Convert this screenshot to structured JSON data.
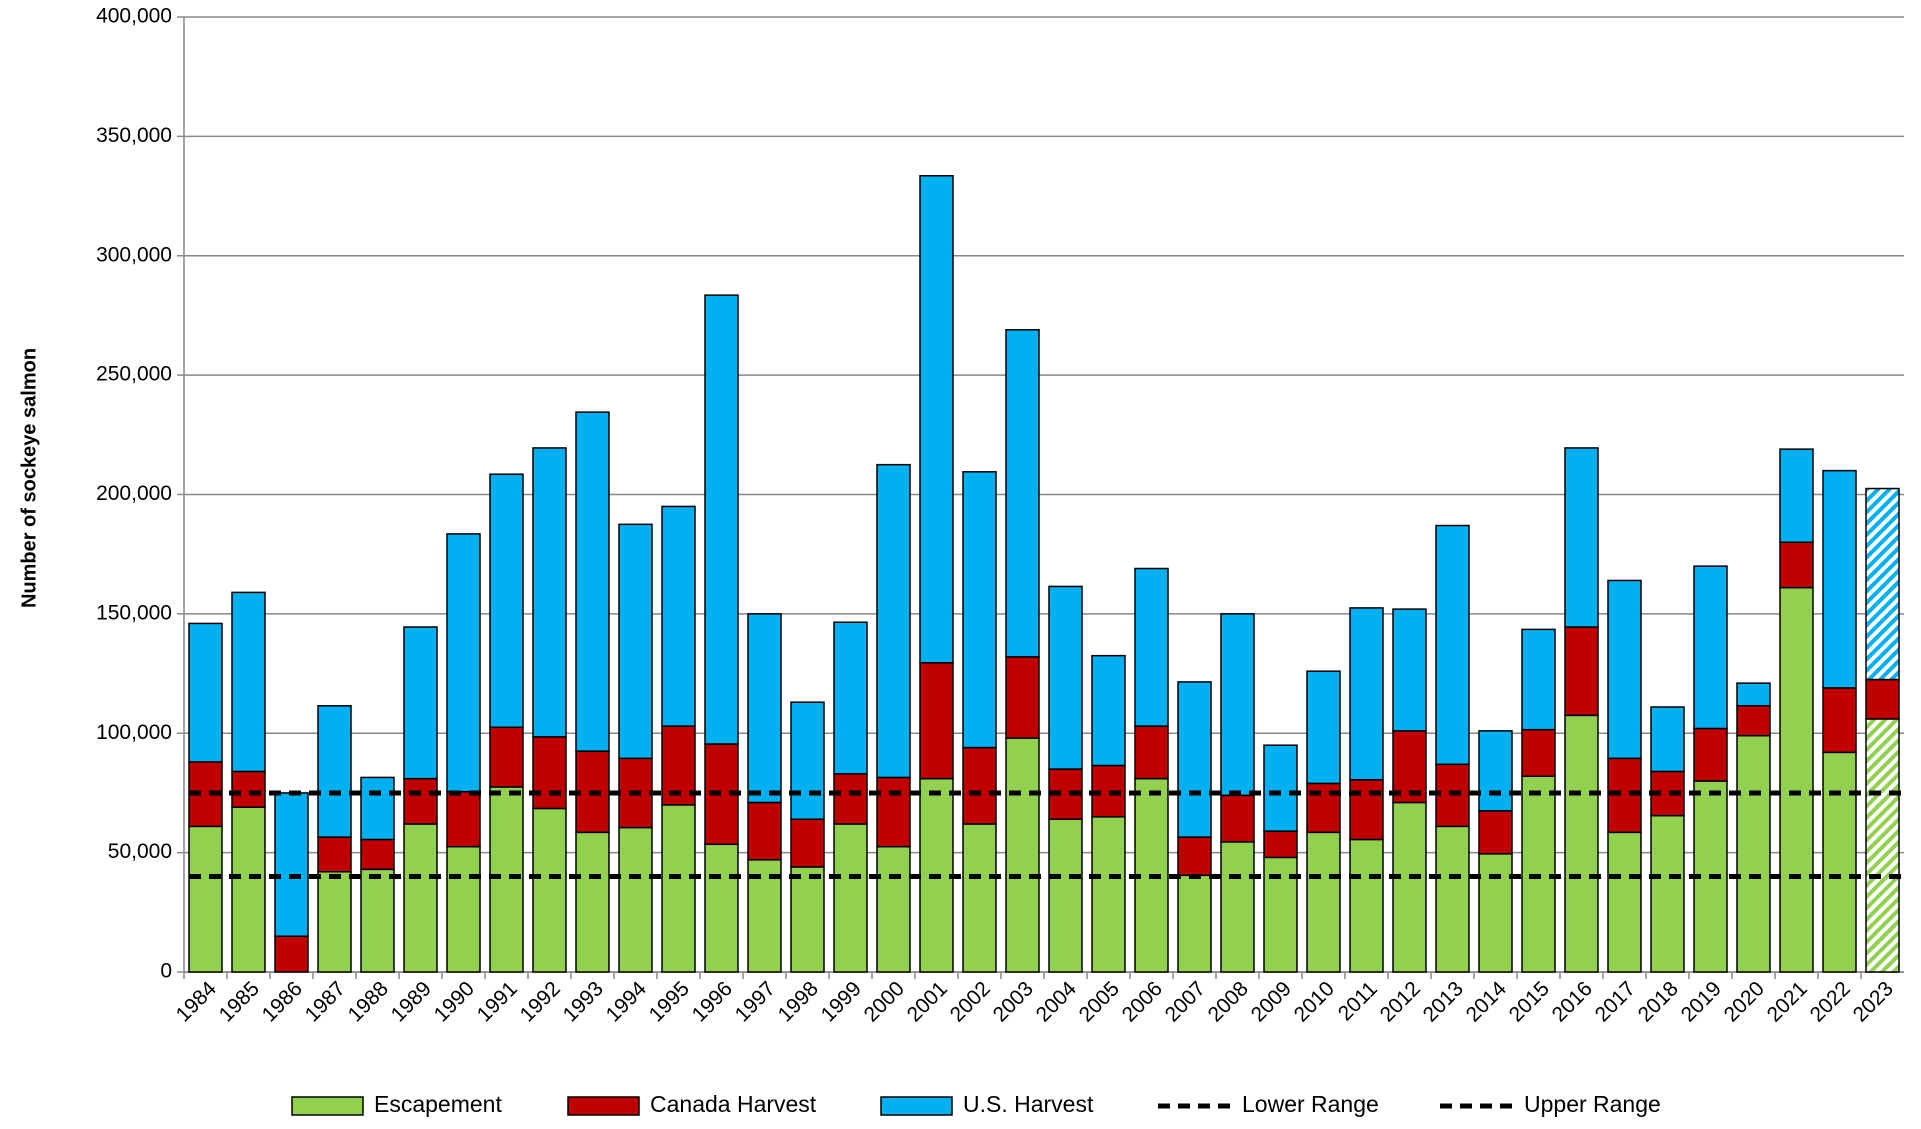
{
  "chart_data": {
    "type": "stacked_bar",
    "y_label": "Number of sockeye salmon",
    "categories": [
      "1984",
      "1985",
      "1986",
      "1987",
      "1988",
      "1989",
      "1990",
      "1991",
      "1992",
      "1993",
      "1994",
      "1995",
      "1996",
      "1997",
      "1998",
      "1999",
      "2000",
      "2001",
      "2002",
      "2003",
      "2004",
      "2005",
      "2006",
      "2007",
      "2008",
      "2009",
      "2010",
      "2011",
      "2012",
      "2013",
      "2014",
      "2015",
      "2016",
      "2017",
      "2018",
      "2019",
      "2020",
      "2021",
      "2022",
      "2023"
    ],
    "series": [
      {
        "name": "Escapement",
        "color": "#92d050",
        "hatch_last": true,
        "values": [
          61000,
          69000,
          0,
          42000,
          43000,
          62000,
          52500,
          77500,
          68500,
          58500,
          60500,
          70000,
          53500,
          47000,
          44000,
          62000,
          52500,
          81000,
          62000,
          98000,
          64000,
          65000,
          81000,
          40500,
          54500,
          48000,
          58500,
          55500,
          71000,
          61000,
          49500,
          82000,
          107500,
          58500,
          65500,
          80000,
          99000,
          161000,
          92000,
          106000
        ]
      },
      {
        "name": "Canada Harvest",
        "color": "#c00000",
        "hatch_last": false,
        "values": [
          27000,
          15000,
          15000,
          14500,
          12500,
          19000,
          23000,
          25000,
          30000,
          34000,
          29000,
          33000,
          42000,
          24000,
          20000,
          21000,
          29000,
          48500,
          32000,
          34000,
          21000,
          21500,
          22000,
          16000,
          19500,
          11000,
          20500,
          25000,
          30000,
          26000,
          18000,
          19500,
          37000,
          31000,
          18500,
          22000,
          12500,
          19000,
          27000,
          16500
        ]
      },
      {
        "name": "U.S. Harvest",
        "color": "#00b0f0",
        "hatch_last": true,
        "values": [
          58000,
          75000,
          60000,
          55000,
          26000,
          63500,
          108000,
          106000,
          121000,
          142000,
          98000,
          92000,
          188000,
          79000,
          49000,
          63500,
          131000,
          204000,
          115500,
          137000,
          76500,
          46000,
          66000,
          65000,
          76000,
          36000,
          47000,
          72000,
          51000,
          100000,
          33500,
          42000,
          75000,
          74500,
          27000,
          68000,
          9500,
          39000,
          91000,
          80000
        ]
      }
    ],
    "reference_lines": [
      {
        "name": "Lower Range",
        "value": 40000,
        "color": "#000000"
      },
      {
        "name": "Upper Range",
        "value": 75000,
        "color": "#000000"
      }
    ],
    "ylim": [
      0,
      400000
    ],
    "yticks": [
      0,
      {
        "value": 50000,
        "label": "50,000"
      },
      {
        "value": 100000,
        "label": "100,000"
      },
      {
        "value": 150000,
        "label": "150,000"
      },
      {
        "value": 200000,
        "label": "200,000"
      },
      {
        "value": 250000,
        "label": "250,000"
      },
      {
        "value": 300000,
        "label": "300,000"
      },
      {
        "value": 350000,
        "label": "350,000"
      },
      {
        "value": 400000,
        "label": "400,000"
      }
    ],
    "grid": true
  }
}
